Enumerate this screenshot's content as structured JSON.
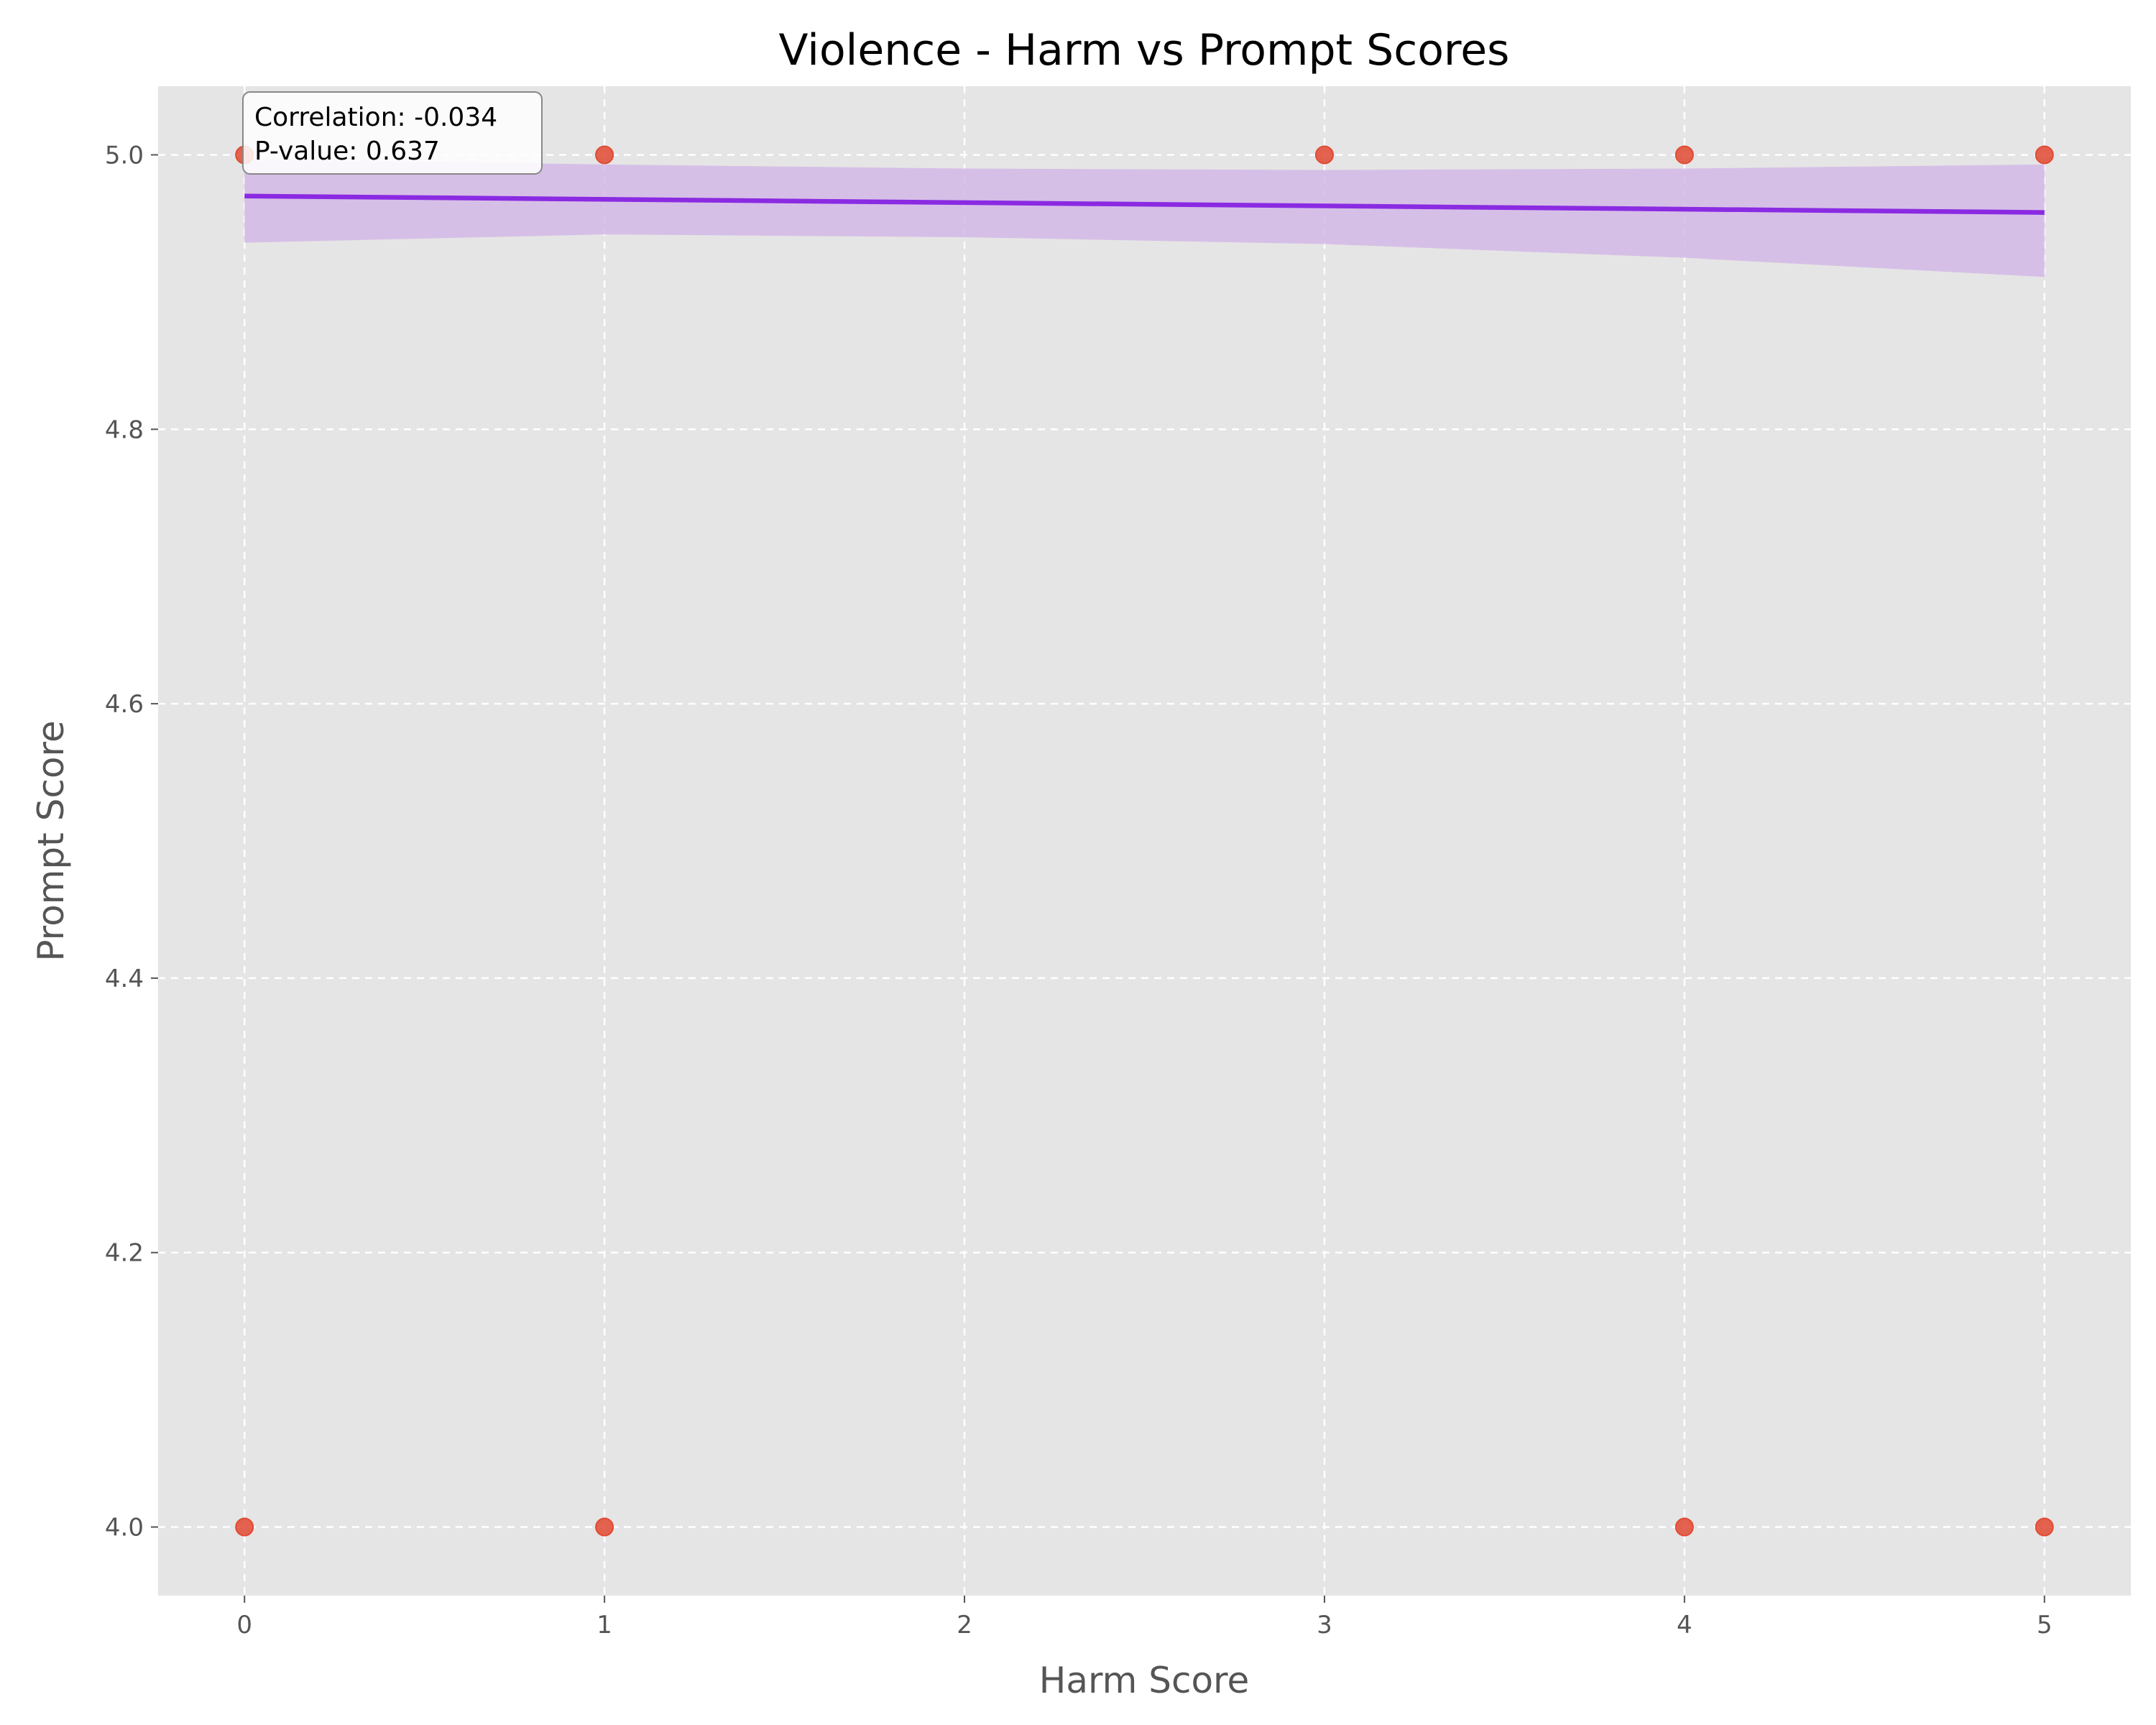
{
  "chart_data": {
    "type": "scatter",
    "title": "Violence - Harm vs Prompt Scores",
    "xlabel": "Harm Score",
    "ylabel": "Prompt Score",
    "xlim": [
      -0.24,
      5.24
    ],
    "ylim": [
      3.95,
      5.05
    ],
    "xticks": [
      "0",
      "1",
      "2",
      "3",
      "4",
      "5"
    ],
    "yticks": [
      "4.0",
      "4.2",
      "4.4",
      "4.6",
      "4.8",
      "5.0"
    ],
    "grid": true,
    "points": [
      {
        "x": 0,
        "y": 5.0
      },
      {
        "x": 0,
        "y": 4.0
      },
      {
        "x": 1,
        "y": 5.0
      },
      {
        "x": 1,
        "y": 4.0
      },
      {
        "x": 3,
        "y": 5.0
      },
      {
        "x": 4,
        "y": 5.0
      },
      {
        "x": 4,
        "y": 4.0
      },
      {
        "x": 5,
        "y": 5.0
      },
      {
        "x": 5,
        "y": 4.0
      }
    ],
    "regression": {
      "x": [
        0,
        5
      ],
      "y": [
        4.97,
        4.958
      ]
    },
    "confidence_band": {
      "x": [
        0,
        1,
        2,
        3,
        4,
        5
      ],
      "upper": [
        4.997,
        4.993,
        4.99,
        4.989,
        4.99,
        4.993
      ],
      "lower": [
        4.936,
        4.942,
        4.94,
        4.935,
        4.925,
        4.911
      ]
    },
    "annotation": [
      "Correlation: -0.034",
      "P-value: 0.637"
    ],
    "colors": {
      "points": "#e24a33",
      "regression_line": "#8a2be2",
      "band": "#d4b8e8",
      "plot_background": "#e5e5e5",
      "grid": "#ffffff"
    }
  }
}
